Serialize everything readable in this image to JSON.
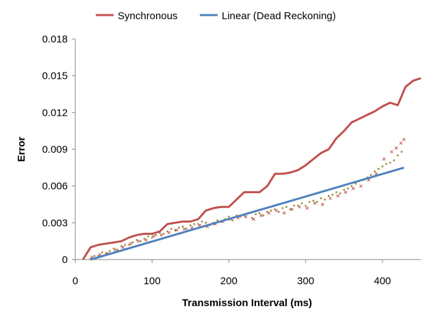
{
  "chart_data": {
    "type": "line",
    "title": "",
    "xlabel": "Transmission Interval (ms)",
    "ylabel": "Error",
    "xlim": [
      0,
      450
    ],
    "ylim": [
      0,
      0.018
    ],
    "x_ticks": [
      0,
      100,
      200,
      300,
      400
    ],
    "y_ticks": [
      0,
      0.003,
      0.006,
      0.009,
      0.012,
      0.015,
      0.018
    ],
    "x_tick_labels": [
      "0",
      "100",
      "200",
      "300",
      "400"
    ],
    "y_tick_labels": [
      "0",
      "0.003",
      "0.006",
      "0.009",
      "0.012",
      "0.015",
      "0.018"
    ],
    "grid": false,
    "legend_position": "top",
    "series": [
      {
        "name": "Synchronous",
        "color": "#C0504D",
        "kind": "line",
        "x": [
          10,
          20,
          30,
          40,
          50,
          60,
          70,
          80,
          90,
          100,
          110,
          120,
          130,
          140,
          150,
          160,
          170,
          180,
          190,
          200,
          210,
          220,
          230,
          240,
          250,
          260,
          270,
          280,
          290,
          300,
          310,
          320,
          330,
          340,
          350,
          360,
          370,
          380,
          390,
          400,
          410,
          420,
          430,
          440,
          450
        ],
        "y": [
          0.0,
          0.001,
          0.0012,
          0.0013,
          0.0014,
          0.0015,
          0.0018,
          0.002,
          0.0021,
          0.0021,
          0.0023,
          0.0029,
          0.003,
          0.0031,
          0.0031,
          0.0033,
          0.004,
          0.0042,
          0.0043,
          0.0043,
          0.0049,
          0.0055,
          0.0055,
          0.0055,
          0.006,
          0.007,
          0.007,
          0.0071,
          0.0073,
          0.0077,
          0.0082,
          0.0087,
          0.009,
          0.0099,
          0.0105,
          0.0112,
          0.0115,
          0.0118,
          0.0121,
          0.0125,
          0.0128,
          0.0126,
          0.0141,
          0.0146,
          0.0148
        ]
      },
      {
        "name": "Linear (Dead Reckoning)",
        "color": "#4F81BD",
        "kind": "line",
        "x": [
          20,
          428
        ],
        "y": [
          0.0,
          0.0075
        ]
      }
    ],
    "scatter_series": [
      {
        "color": "#9B8A3C",
        "marker": "dot",
        "x": [
          20,
          25,
          30,
          35,
          40,
          45,
          50,
          55,
          60,
          65,
          70,
          75,
          80,
          85,
          90,
          95,
          100,
          105,
          110,
          115,
          120,
          125,
          130,
          135,
          140,
          145,
          150,
          155,
          160,
          165,
          170,
          175,
          180,
          185,
          190,
          195,
          200,
          205,
          210,
          215,
          220,
          225,
          230,
          235,
          240,
          245,
          250,
          255,
          260,
          265,
          270,
          275,
          280,
          285,
          290,
          295,
          300,
          305,
          310,
          315,
          320,
          325,
          330,
          335,
          340,
          345,
          350,
          355,
          360,
          365,
          370,
          375,
          380,
          385,
          390,
          395,
          400,
          405,
          410,
          415,
          420,
          425
        ],
        "y": [
          0.0001,
          0.0003,
          0.0003,
          0.0006,
          0.0005,
          0.0007,
          0.0009,
          0.0008,
          0.0011,
          0.0012,
          0.0012,
          0.0014,
          0.0016,
          0.0015,
          0.0017,
          0.0019,
          0.0018,
          0.002,
          0.0022,
          0.0021,
          0.0023,
          0.0025,
          0.0024,
          0.0026,
          0.0027,
          0.0025,
          0.0028,
          0.0029,
          0.0029,
          0.0031,
          0.003,
          0.0028,
          0.003,
          0.0032,
          0.0031,
          0.0033,
          0.0035,
          0.0032,
          0.0036,
          0.0035,
          0.0036,
          0.0038,
          0.0034,
          0.0037,
          0.0038,
          0.0036,
          0.0039,
          0.004,
          0.0041,
          0.0039,
          0.0042,
          0.0043,
          0.0041,
          0.0044,
          0.0044,
          0.0046,
          0.0044,
          0.0047,
          0.0048,
          0.0047,
          0.005,
          0.0049,
          0.0052,
          0.0053,
          0.0055,
          0.0054,
          0.0057,
          0.0058,
          0.006,
          0.0062,
          0.0064,
          0.0065,
          0.0067,
          0.0069,
          0.0072,
          0.0074,
          0.0076,
          0.0078,
          0.0079,
          0.0081,
          0.0085,
          0.0088
        ]
      },
      {
        "color": "#C0504D",
        "marker": "x",
        "x": [
          22,
          32,
          42,
          52,
          62,
          72,
          82,
          92,
          102,
          112,
          122,
          132,
          142,
          152,
          162,
          172,
          182,
          192,
          202,
          212,
          222,
          232,
          242,
          252,
          262,
          272,
          282,
          292,
          302,
          312,
          322,
          332,
          342,
          352,
          362,
          372,
          382,
          392,
          402,
          412,
          418,
          424,
          428
        ],
        "y": [
          0.0002,
          0.0004,
          0.0005,
          0.0008,
          0.001,
          0.0013,
          0.0015,
          0.0016,
          0.0019,
          0.002,
          0.0022,
          0.0024,
          0.0025,
          0.0026,
          0.0028,
          0.0027,
          0.0029,
          0.0031,
          0.0033,
          0.0034,
          0.0035,
          0.0033,
          0.0036,
          0.0038,
          0.004,
          0.0038,
          0.0041,
          0.0043,
          0.0042,
          0.0046,
          0.0045,
          0.005,
          0.0052,
          0.0055,
          0.0058,
          0.006,
          0.0065,
          0.007,
          0.0082,
          0.0088,
          0.0091,
          0.0095,
          0.0098
        ]
      }
    ]
  }
}
